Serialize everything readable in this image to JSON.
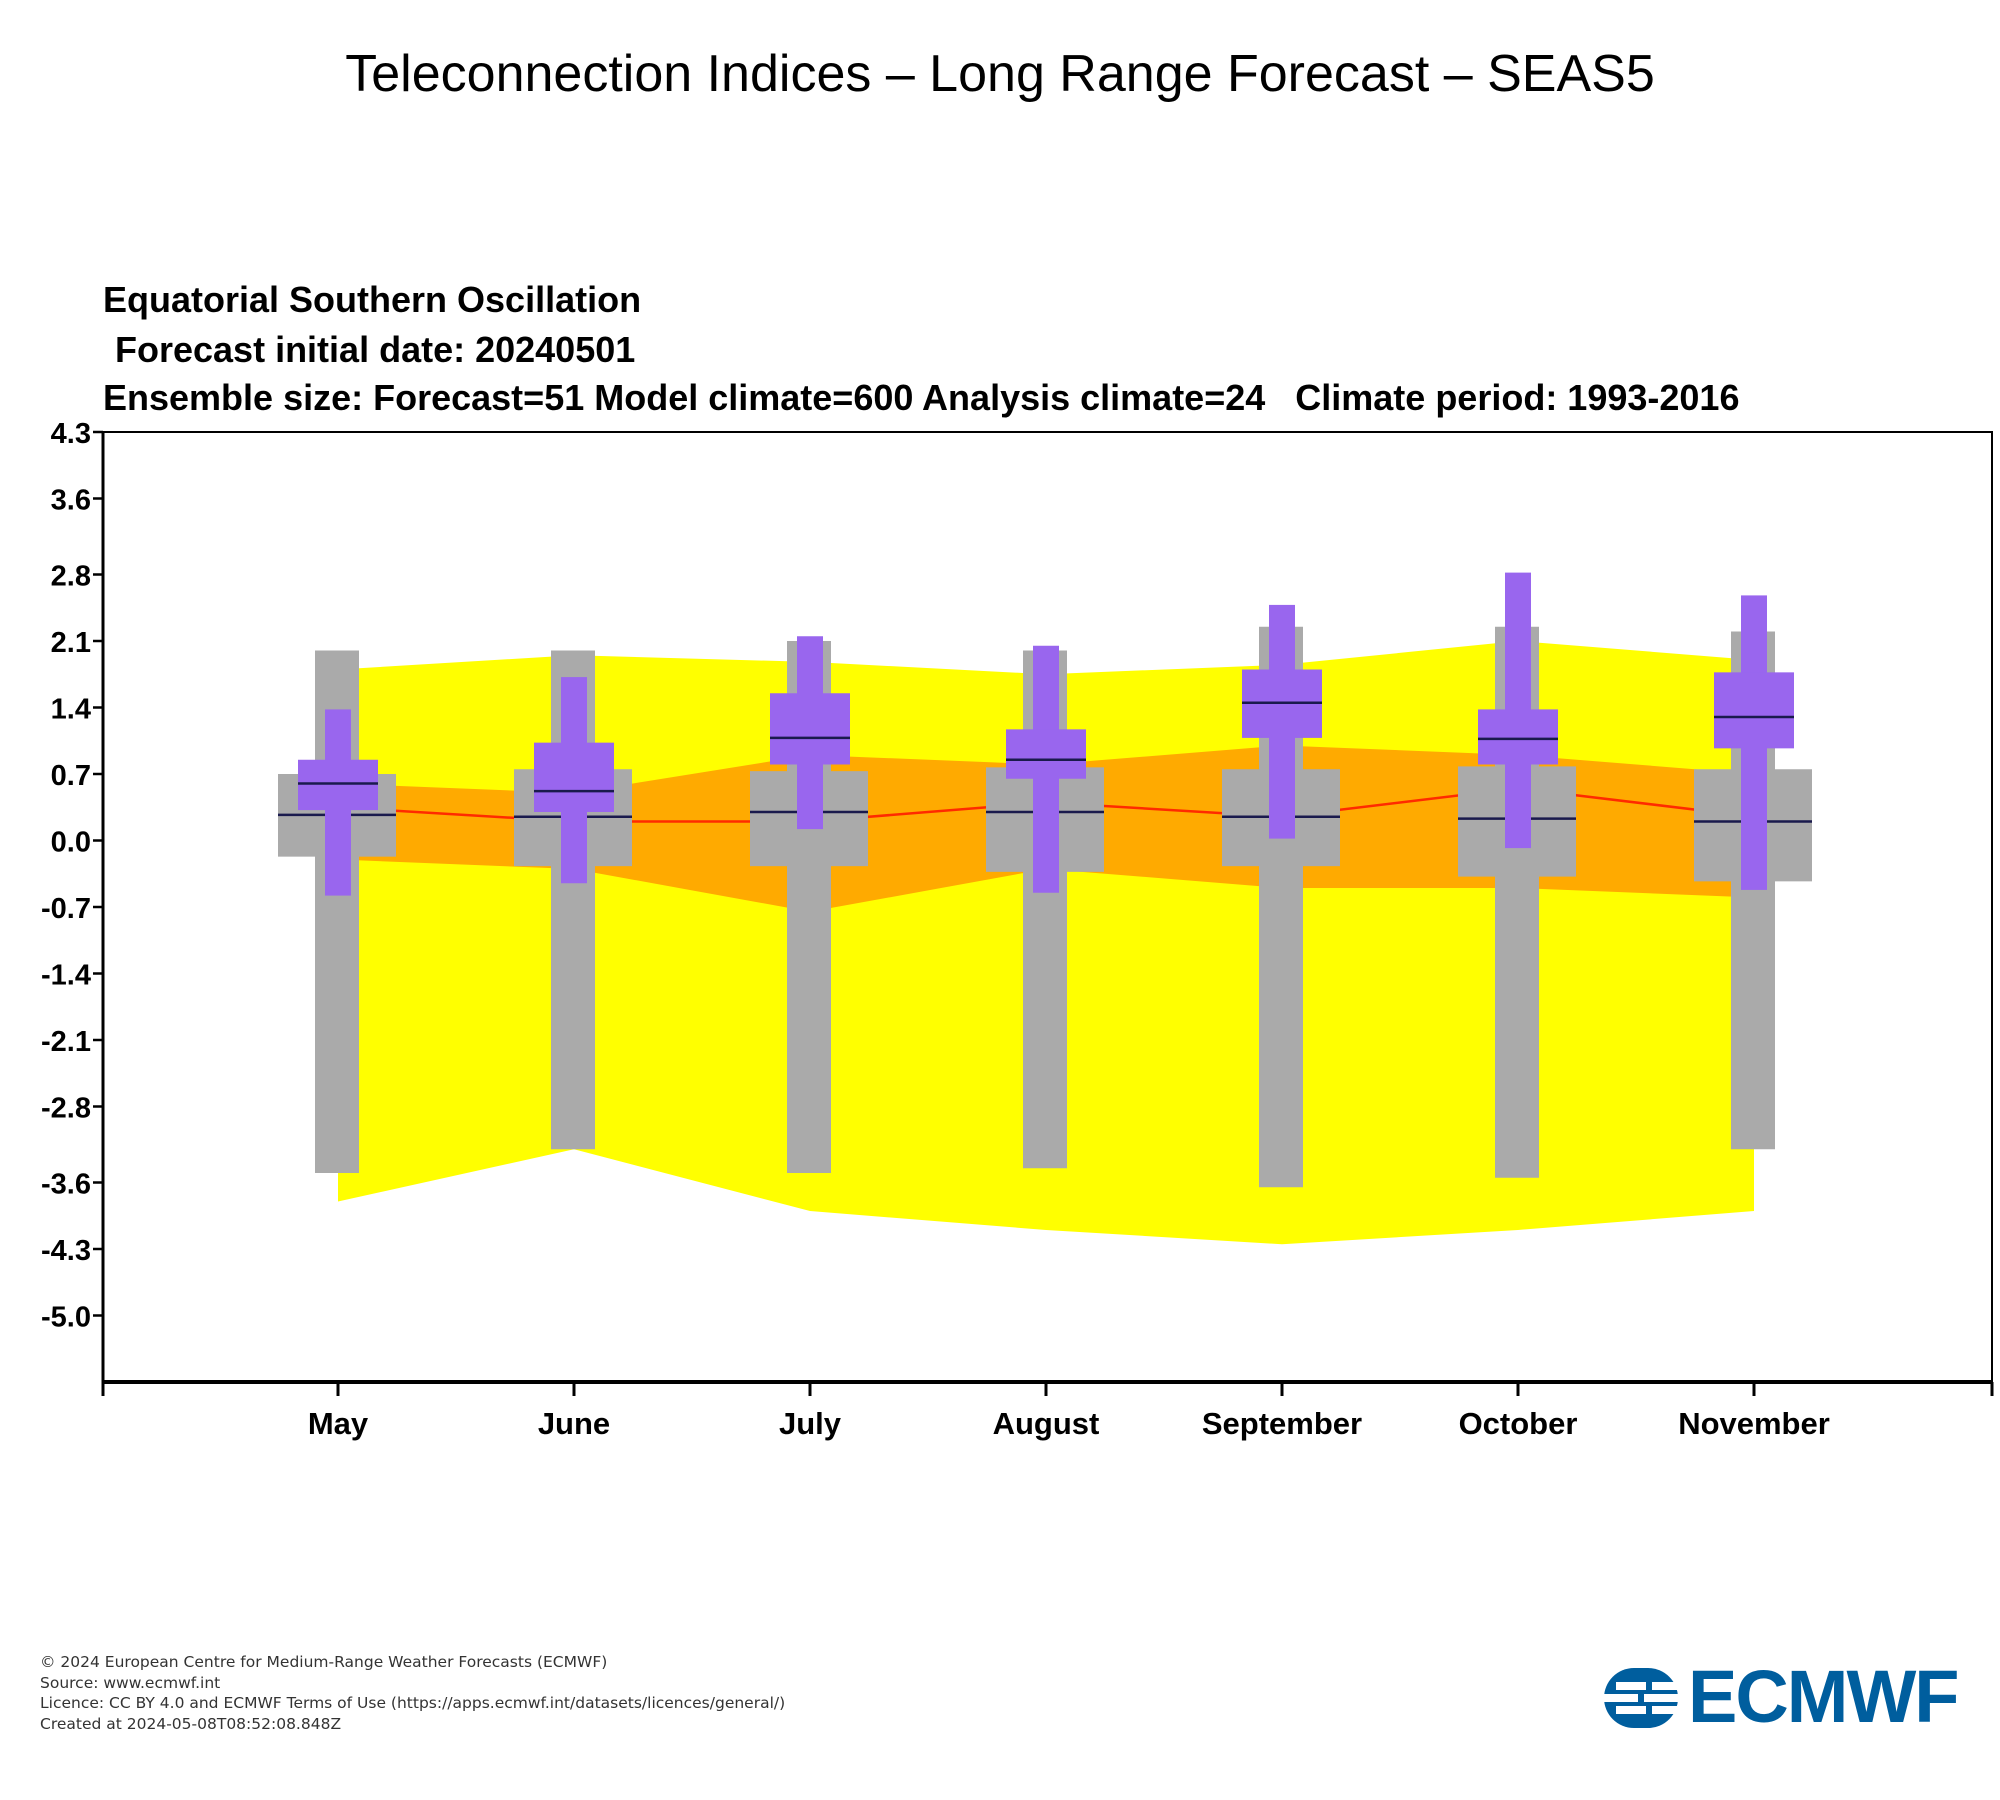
{
  "page": {
    "title": "Teleconnection Indices – Long Range Forecast – SEAS5"
  },
  "chart_data": {
    "type": "boxplot",
    "title_lines": [
      "Equatorial Southern Oscillation",
      "Forecast initial date: 20240501",
      "Ensemble size: Forecast=51 Model climate=600 Analysis climate=24   Climate period: 1993-2016"
    ],
    "y_ticks": [
      "4.3",
      "3.6",
      "2.8",
      "2.1",
      "1.4",
      "0.7",
      "0.0",
      "-0.7",
      "-1.4",
      "-2.1",
      "-2.8",
      "-3.6",
      "-4.3",
      "-5.0"
    ],
    "ylim": [
      -5.7,
      4.3
    ],
    "categories": [
      "May",
      "June",
      "July",
      "August",
      "September",
      "October",
      "November"
    ],
    "colors": {
      "analysis_full": "#ffff00",
      "analysis_inner": "#ffaa00",
      "analysis_median": "#ff2a00",
      "model_climate": "#aaaaaa",
      "forecast": "#9966ee",
      "median_line": "#1a1a4d"
    },
    "analysis_climate": {
      "outer_top": [
        1.8,
        1.95,
        1.88,
        1.75,
        1.85,
        2.1,
        1.9
      ],
      "outer_bottom": [
        -3.8,
        -3.25,
        -3.9,
        -4.1,
        -4.25,
        -4.1,
        -3.9
      ],
      "inner_top": [
        0.6,
        0.5,
        0.9,
        0.8,
        1.0,
        0.9,
        0.7
      ],
      "inner_bottom": [
        -0.2,
        -0.3,
        -0.75,
        -0.3,
        -0.5,
        -0.5,
        -0.6
      ],
      "median": [
        0.35,
        0.2,
        0.2,
        0.4,
        0.25,
        0.55,
        0.25
      ]
    },
    "model_climate": {
      "whisker_low": [
        -3.5,
        -3.25,
        -3.5,
        -3.45,
        -3.65,
        -3.55,
        -3.25
      ],
      "whisker_high": [
        2.0,
        2.0,
        2.1,
        2.0,
        2.25,
        2.25,
        2.2
      ],
      "box_low": [
        -0.17,
        -0.27,
        -0.27,
        -0.33,
        -0.27,
        -0.38,
        -0.43
      ],
      "box_high": [
        0.7,
        0.75,
        0.73,
        0.77,
        0.75,
        0.78,
        0.75
      ],
      "median": [
        0.27,
        0.25,
        0.3,
        0.3,
        0.25,
        0.23,
        0.2
      ]
    },
    "forecast": {
      "whisker_low": [
        -0.58,
        -0.45,
        0.12,
        -0.55,
        0.02,
        -0.08,
        -0.52
      ],
      "whisker_high": [
        1.38,
        1.72,
        2.15,
        2.05,
        2.48,
        2.82,
        2.58
      ],
      "box_low": [
        0.32,
        0.3,
        0.8,
        0.65,
        1.08,
        0.8,
        0.97
      ],
      "box_high": [
        0.85,
        1.03,
        1.55,
        1.17,
        1.8,
        1.38,
        1.77
      ],
      "median": [
        0.6,
        0.52,
        1.08,
        0.85,
        1.45,
        1.07,
        1.3
      ]
    }
  },
  "footer": {
    "line1": "© 2024 European Centre for Medium-Range Weather Forecasts (ECMWF)",
    "line2": "Source: www.ecmwf.int",
    "line3": "Licence: CC BY 4.0 and ECMWF Terms of Use (https://apps.ecmwf.int/datasets/licences/general/)",
    "line4": "Created at 2024-05-08T08:52:08.848Z"
  },
  "logo": {
    "text": "ECMWF",
    "color": "#005e9e"
  }
}
